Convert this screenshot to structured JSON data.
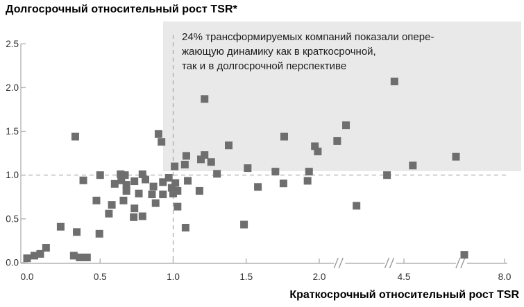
{
  "title": "Долгосрочный относительный рост TSR*",
  "xlabel": "Краткосрочный относительный рост TSR",
  "annotation": {
    "lines": [
      "24% трансформируемых компаний показали опере-",
      "жающую динамику как в краткосрочной,",
      "так и в долгосрочной перспективе"
    ]
  },
  "colors": {
    "point": "#6e6e6e",
    "highlight_box": "#e9e9e9",
    "dashed_line": "#a6a6a6",
    "axis": "#b3b3b3",
    "break_mark": "#9a9a9a",
    "tick_text": "#2e2e2e",
    "text": "#1c1c1c"
  },
  "chart_data": {
    "type": "scatter",
    "title": "Долгосрочный относительный рост TSR*",
    "xlabel": "Краткосрочный относительный рост TSR",
    "ylabel": "Долгосрочный относительный рост TSR",
    "marker": "square",
    "grid": false,
    "legend": "none",
    "ylim": [
      0,
      2.5
    ],
    "xlim": [
      0,
      8.0
    ],
    "y_ticks": [
      0.0,
      0.5,
      1.0,
      1.5,
      2.0,
      2.5
    ],
    "y_tick_labels": [
      "0.0",
      "0.5",
      "1.0",
      "1.5",
      "2.0",
      "2.5"
    ],
    "x_ticks": [
      0.0,
      0.5,
      1.0,
      1.5,
      2.0,
      4.5,
      8.0
    ],
    "x_tick_labels": [
      "0.0",
      "0.5",
      "1.0",
      "1.5",
      "2.0",
      "4.5",
      "8.0"
    ],
    "x_axis_breaks": [
      2.6,
      4.1,
      6.5
    ],
    "reference_lines": {
      "x": 1.0,
      "y": 1.0,
      "style": "dashed"
    },
    "shaded_region": {
      "x_min": 0.95,
      "y_min": 1.05,
      "note": "upper-right quadrant highlighted"
    },
    "annotation_text": "24% трансформируемых компаний показали опережающую динамику как в краткосрочной, так и в долгосрочной перспективе",
    "points": [
      [
        0.0,
        0.05
      ],
      [
        0.05,
        0.08
      ],
      [
        0.09,
        0.1
      ],
      [
        0.13,
        0.17
      ],
      [
        0.23,
        0.41
      ],
      [
        0.32,
        0.08
      ],
      [
        0.36,
        0.06
      ],
      [
        0.41,
        0.06
      ],
      [
        0.34,
        0.35
      ],
      [
        0.33,
        1.44
      ],
      [
        0.385,
        0.94
      ],
      [
        0.475,
        0.71
      ],
      [
        0.495,
        0.33
      ],
      [
        0.5,
        1.0
      ],
      [
        0.56,
        0.56
      ],
      [
        0.58,
        0.66
      ],
      [
        0.6,
        0.9
      ],
      [
        0.64,
        1.01
      ],
      [
        0.645,
        0.94
      ],
      [
        0.66,
        0.71
      ],
      [
        0.67,
        1.0
      ],
      [
        0.68,
        0.89
      ],
      [
        0.68,
        0.82
      ],
      [
        0.73,
        0.52
      ],
      [
        0.735,
        0.93
      ],
      [
        0.735,
        0.62
      ],
      [
        0.765,
        0.79
      ],
      [
        0.79,
        1.01
      ],
      [
        0.79,
        0.53
      ],
      [
        0.81,
        0.95
      ],
      [
        0.855,
        0.78
      ],
      [
        0.865,
        0.87
      ],
      [
        0.88,
        0.68
      ],
      [
        0.9,
        1.47
      ],
      [
        0.92,
        1.38
      ],
      [
        0.93,
        0.92
      ],
      [
        0.93,
        0.78
      ],
      [
        0.97,
        0.97
      ],
      [
        0.99,
        0.855
      ],
      [
        1.0,
        0.79
      ],
      [
        1.015,
        0.91
      ],
      [
        1.03,
        0.82
      ],
      [
        1.03,
        0.64
      ],
      [
        1.085,
        0.4
      ],
      [
        1.1,
        0.935
      ],
      [
        1.18,
        0.82
      ],
      [
        1.01,
        1.1
      ],
      [
        1.08,
        1.12
      ],
      [
        1.09,
        1.22
      ],
      [
        1.19,
        1.18
      ],
      [
        1.215,
        1.87
      ],
      [
        1.215,
        1.23
      ],
      [
        1.26,
        1.15
      ],
      [
        1.3,
        1.015
      ],
      [
        1.38,
        1.34
      ],
      [
        1.485,
        0.435
      ],
      [
        1.51,
        1.08
      ],
      [
        1.58,
        0.865
      ],
      [
        1.7,
        1.04
      ],
      [
        1.755,
        0.905
      ],
      [
        1.76,
        1.44
      ],
      [
        1.92,
        0.935
      ],
      [
        1.93,
        1.04
      ],
      [
        1.97,
        1.33
      ],
      [
        1.99,
        1.27
      ],
      [
        2.53,
        1.39
      ],
      [
        2.79,
        1.57
      ],
      [
        3.1,
        0.65
      ],
      [
        4.0,
        1.0
      ],
      [
        4.22,
        2.07
      ],
      [
        4.81,
        1.11
      ],
      [
        6.31,
        1.21
      ],
      [
        6.6,
        0.09
      ]
    ]
  }
}
